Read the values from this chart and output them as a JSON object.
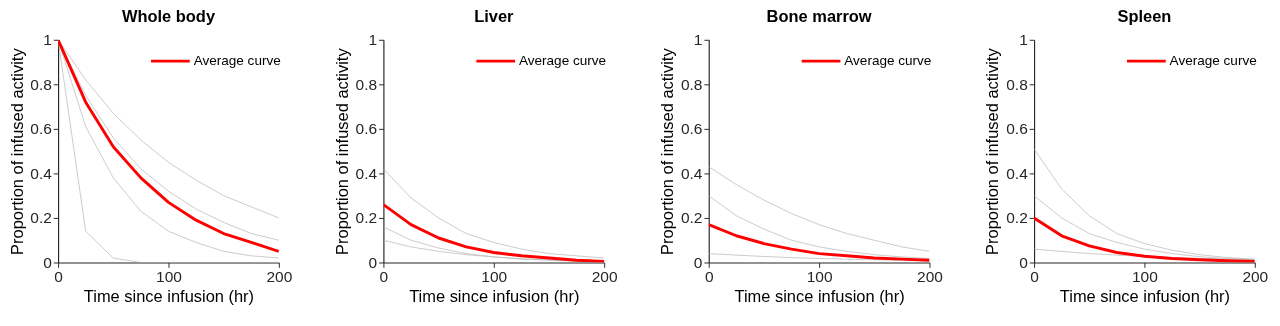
{
  "chart_data": [
    {
      "type": "line",
      "title": "Whole body",
      "xlabel": "Time since infusion (hr)",
      "ylabel": "Proportion of infused activity",
      "x": [
        0,
        25,
        50,
        75,
        100,
        125,
        150,
        175,
        200
      ],
      "xlim": [
        0,
        200
      ],
      "xticks": [
        0,
        100,
        200
      ],
      "ylim": [
        0,
        1
      ],
      "yticks": [
        0,
        0.2,
        0.4,
        0.6,
        0.8,
        1
      ],
      "grid": false,
      "legend": "top right",
      "marker": "none",
      "line_style": "solid",
      "series": [
        {
          "color": "#b4b4b4",
          "values": [
            1,
            0.82,
            0.67,
            0.55,
            0.45,
            0.37,
            0.3,
            0.25,
            0.2
          ]
        },
        {
          "color": "#b4b4b4",
          "values": [
            1,
            0.75,
            0.56,
            0.42,
            0.32,
            0.24,
            0.18,
            0.13,
            0.1
          ]
        },
        {
          "color": "#b4b4b4",
          "values": [
            1,
            0.61,
            0.38,
            0.23,
            0.14,
            0.09,
            0.05,
            0.03,
            0.02
          ]
        },
        {
          "color": "#b4b4b4",
          "values": [
            1,
            0.14,
            0.02,
            0,
            0,
            0,
            0,
            0,
            0
          ]
        },
        {
          "name": "Average curve",
          "color": "#ff0000",
          "values": [
            1,
            0.72,
            0.52,
            0.38,
            0.27,
            0.19,
            0.13,
            0.09,
            0.05
          ]
        }
      ]
    },
    {
      "type": "line",
      "title": "Liver",
      "xlabel": "Time since infusion (hr)",
      "ylabel": "Proportion of infused activity",
      "x": [
        0,
        25,
        50,
        75,
        100,
        125,
        150,
        175,
        200
      ],
      "xlim": [
        0,
        200
      ],
      "xticks": [
        0,
        100,
        200
      ],
      "ylim": [
        0,
        1
      ],
      "yticks": [
        0,
        0.2,
        0.4,
        0.6,
        0.8,
        1
      ],
      "grid": false,
      "legend": "top right",
      "marker": "none",
      "line_style": "solid",
      "series": [
        {
          "color": "#b4b4b4",
          "values": [
            0.42,
            0.29,
            0.2,
            0.13,
            0.09,
            0.06,
            0.04,
            0.03,
            0.02
          ]
        },
        {
          "color": "#b4b4b4",
          "values": [
            0.16,
            0.1,
            0.065,
            0.04,
            0.025,
            0.015,
            0.01,
            0.006,
            0.004
          ]
        },
        {
          "color": "#b4b4b4",
          "values": [
            0.1,
            0.07,
            0.05,
            0.035,
            0.025,
            0.017,
            0.012,
            0.008,
            0.005
          ]
        },
        {
          "name": "Average curve",
          "color": "#ff0000",
          "values": [
            0.26,
            0.17,
            0.11,
            0.07,
            0.045,
            0.03,
            0.02,
            0.01,
            0.005
          ]
        }
      ]
    },
    {
      "type": "line",
      "title": "Bone marrow",
      "xlabel": "Time since infusion (hr)",
      "ylabel": "Proportion of infused activity",
      "x": [
        0,
        25,
        50,
        75,
        100,
        125,
        150,
        175,
        200
      ],
      "xlim": [
        0,
        200
      ],
      "xticks": [
        0,
        100,
        200
      ],
      "ylim": [
        0,
        1
      ],
      "yticks": [
        0,
        0.2,
        0.4,
        0.6,
        0.8,
        1
      ],
      "grid": false,
      "legend": "top right",
      "marker": "none",
      "line_style": "solid",
      "series": [
        {
          "color": "#b4b4b4",
          "values": [
            0.43,
            0.35,
            0.28,
            0.22,
            0.17,
            0.13,
            0.1,
            0.07,
            0.05
          ]
        },
        {
          "color": "#b4b4b4",
          "values": [
            0.3,
            0.21,
            0.15,
            0.1,
            0.07,
            0.05,
            0.035,
            0.025,
            0.018
          ]
        },
        {
          "color": "#b4b4b4",
          "values": [
            0.04,
            0.033,
            0.027,
            0.022,
            0.018,
            0.015,
            0.012,
            0.01,
            0.008
          ]
        },
        {
          "name": "Average curve",
          "color": "#ff0000",
          "values": [
            0.17,
            0.12,
            0.085,
            0.06,
            0.04,
            0.03,
            0.02,
            0.015,
            0.01
          ]
        }
      ]
    },
    {
      "type": "line",
      "title": "Spleen",
      "xlabel": "Time since infusion (hr)",
      "ylabel": "Proportion of infused activity",
      "x": [
        0,
        25,
        50,
        75,
        100,
        125,
        150,
        175,
        200
      ],
      "xlim": [
        0,
        200
      ],
      "xticks": [
        0,
        100,
        200
      ],
      "ylim": [
        0,
        1
      ],
      "yticks": [
        0,
        0.2,
        0.4,
        0.6,
        0.8,
        1
      ],
      "grid": false,
      "legend": "top right",
      "marker": "none",
      "line_style": "solid",
      "series": [
        {
          "color": "#b4b4b4",
          "values": [
            0.51,
            0.33,
            0.21,
            0.13,
            0.085,
            0.055,
            0.035,
            0.022,
            0.015
          ]
        },
        {
          "color": "#b4b4b4",
          "values": [
            0.3,
            0.2,
            0.13,
            0.09,
            0.06,
            0.04,
            0.026,
            0.018,
            0.012
          ]
        },
        {
          "color": "#b4b4b4",
          "values": [
            0.06,
            0.05,
            0.04,
            0.033,
            0.027,
            0.022,
            0.018,
            0.015,
            0.012
          ]
        },
        {
          "name": "Average curve",
          "color": "#ff0000",
          "values": [
            0.2,
            0.12,
            0.075,
            0.045,
            0.028,
            0.018,
            0.012,
            0.008,
            0.005
          ]
        }
      ]
    }
  ]
}
